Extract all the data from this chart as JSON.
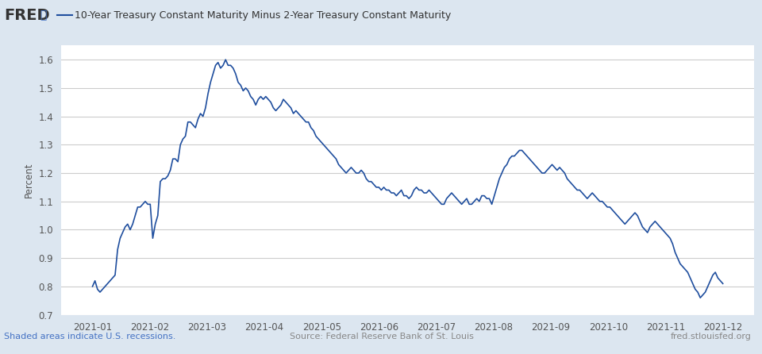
{
  "title": "10-Year Treasury Constant Maturity Minus 2-Year Treasury Constant Maturity",
  "ylabel": "Percent",
  "line_color": "#1f4e9e",
  "line_width": 1.2,
  "bg_color": "#dce6f0",
  "plot_bg_color": "#ffffff",
  "footer_left": "Shaded areas indicate U.S. recessions.",
  "footer_center": "Source: Federal Reserve Bank of St. Louis",
  "footer_right": "fred.stlouisfed.org",
  "footer_color_left": "#4472c4",
  "footer_color_other": "#888888",
  "ylim": [
    0.7,
    1.65
  ],
  "yticks": [
    0.7,
    0.8,
    0.9,
    1.0,
    1.1,
    1.2,
    1.3,
    1.4,
    1.5,
    1.6
  ],
  "dates_labels": [
    "2021-01",
    "2021-02",
    "2021-03",
    "2021-04",
    "2021-05",
    "2021-06",
    "2021-07",
    "2021-08",
    "2021-09",
    "2021-10",
    "2021-11",
    "2021-12"
  ],
  "series": [
    0.8,
    0.82,
    0.79,
    0.78,
    0.79,
    0.8,
    0.81,
    0.82,
    0.83,
    0.84,
    0.93,
    0.97,
    0.99,
    1.01,
    1.02,
    1.0,
    1.02,
    1.05,
    1.08,
    1.08,
    1.09,
    1.1,
    1.09,
    1.09,
    0.97,
    1.02,
    1.05,
    1.17,
    1.18,
    1.18,
    1.19,
    1.21,
    1.25,
    1.25,
    1.24,
    1.3,
    1.32,
    1.33,
    1.38,
    1.38,
    1.37,
    1.36,
    1.39,
    1.41,
    1.4,
    1.43,
    1.48,
    1.52,
    1.55,
    1.58,
    1.59,
    1.57,
    1.58,
    1.6,
    1.58,
    1.58,
    1.57,
    1.55,
    1.52,
    1.51,
    1.49,
    1.5,
    1.49,
    1.47,
    1.46,
    1.44,
    1.46,
    1.47,
    1.46,
    1.47,
    1.46,
    1.45,
    1.43,
    1.42,
    1.43,
    1.44,
    1.46,
    1.45,
    1.44,
    1.43,
    1.41,
    1.42,
    1.41,
    1.4,
    1.39,
    1.38,
    1.38,
    1.36,
    1.35,
    1.33,
    1.32,
    1.31,
    1.3,
    1.29,
    1.28,
    1.27,
    1.26,
    1.25,
    1.23,
    1.22,
    1.21,
    1.2,
    1.21,
    1.22,
    1.21,
    1.2,
    1.2,
    1.21,
    1.2,
    1.18,
    1.17,
    1.17,
    1.16,
    1.15,
    1.15,
    1.14,
    1.15,
    1.14,
    1.14,
    1.13,
    1.13,
    1.12,
    1.13,
    1.14,
    1.12,
    1.12,
    1.11,
    1.12,
    1.14,
    1.15,
    1.14,
    1.14,
    1.13,
    1.13,
    1.14,
    1.13,
    1.12,
    1.11,
    1.1,
    1.09,
    1.09,
    1.11,
    1.12,
    1.13,
    1.12,
    1.11,
    1.1,
    1.09,
    1.1,
    1.11,
    1.09,
    1.09,
    1.1,
    1.11,
    1.1,
    1.12,
    1.12,
    1.11,
    1.11,
    1.09,
    1.12,
    1.15,
    1.18,
    1.2,
    1.22,
    1.23,
    1.25,
    1.26,
    1.26,
    1.27,
    1.28,
    1.28,
    1.27,
    1.26,
    1.25,
    1.24,
    1.23,
    1.22,
    1.21,
    1.2,
    1.2,
    1.21,
    1.22,
    1.23,
    1.22,
    1.21,
    1.22,
    1.21,
    1.2,
    1.18,
    1.17,
    1.16,
    1.15,
    1.14,
    1.14,
    1.13,
    1.12,
    1.11,
    1.12,
    1.13,
    1.12,
    1.11,
    1.1,
    1.1,
    1.09,
    1.08,
    1.08,
    1.07,
    1.06,
    1.05,
    1.04,
    1.03,
    1.02,
    1.03,
    1.04,
    1.05,
    1.06,
    1.05,
    1.03,
    1.01,
    1.0,
    0.99,
    1.01,
    1.02,
    1.03,
    1.02,
    1.01,
    1.0,
    0.99,
    0.98,
    0.97,
    0.95,
    0.92,
    0.9,
    0.88,
    0.87,
    0.86,
    0.85,
    0.83,
    0.81,
    0.79,
    0.78,
    0.76,
    0.77,
    0.78,
    0.8,
    0.82,
    0.84,
    0.85,
    0.83,
    0.82,
    0.81
  ]
}
